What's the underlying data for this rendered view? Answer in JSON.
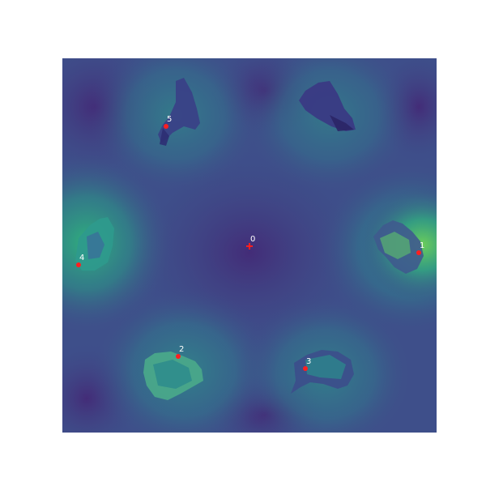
{
  "figure": {
    "colormap": "viridis",
    "background_color": "#3f4a89",
    "marker_color": "#ff1f1f",
    "label_color": "#ffffff"
  },
  "points": [
    {
      "id": "0",
      "label": "0",
      "marker": "cross"
    },
    {
      "id": "1",
      "label": "1",
      "marker": "dot"
    },
    {
      "id": "2",
      "label": "2",
      "marker": "dot"
    },
    {
      "id": "3",
      "label": "3",
      "marker": "dot"
    },
    {
      "id": "4",
      "label": "4",
      "marker": "dot"
    },
    {
      "id": "5",
      "label": "5",
      "marker": "dot"
    }
  ]
}
